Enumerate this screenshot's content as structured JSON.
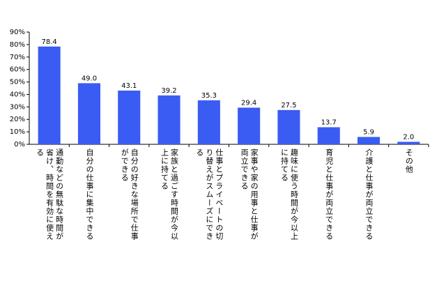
{
  "chart_data": {
    "type": "bar",
    "categories": [
      "通勤などの無駄な時間が省け、時間を有効に使える",
      "自分の仕事に集中できる",
      "自分の好きな場所で仕事ができる",
      "家族と過ごす時間が今以上に持てる",
      "仕事とプライベートの切り替えがスムーズにできる",
      "家事や家の用事と仕事が両立できる",
      "趣味に使う時間が今以上に持てる",
      "育児と仕事が両立できる",
      "介護と仕事が両立できる",
      "その他"
    ],
    "values": [
      78.4,
      49.0,
      43.1,
      39.2,
      35.3,
      29.4,
      27.5,
      13.7,
      5.9,
      2.0
    ],
    "value_labels": [
      "78.4",
      "49.0",
      "43.1",
      "39.2",
      "35.3",
      "29.4",
      "27.5",
      "13.7",
      "5.9",
      "2.0"
    ],
    "color": "#3a5cf2",
    "ylim": [
      0,
      90
    ],
    "yticks": [
      {
        "value": 0,
        "label": "0%"
      },
      {
        "value": 10,
        "label": "10%"
      },
      {
        "value": 20,
        "label": "20%"
      },
      {
        "value": 30,
        "label": "30%"
      },
      {
        "value": 40,
        "label": "40%"
      },
      {
        "value": 50,
        "label": "50%"
      },
      {
        "value": 60,
        "label": "60%"
      },
      {
        "value": 70,
        "label": "70%"
      },
      {
        "value": 80,
        "label": "80%"
      },
      {
        "value": 90,
        "label": "90%"
      }
    ],
    "grid": false
  }
}
